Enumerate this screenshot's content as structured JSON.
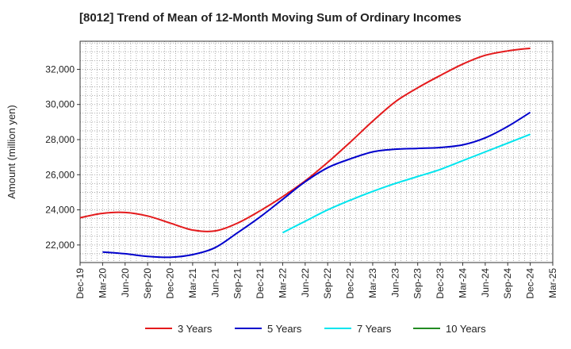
{
  "chart_data": {
    "type": "line",
    "title": "[8012]  Trend of Mean of 12-Month Moving Sum of Ordinary Incomes",
    "xlabel": "",
    "ylabel": "Amount (million yen)",
    "ylim": [
      21000,
      33600
    ],
    "yticks": [
      22000,
      24000,
      26000,
      28000,
      30000,
      32000
    ],
    "ytick_labels": [
      "22,000",
      "24,000",
      "26,000",
      "28,000",
      "30,000",
      "32,000"
    ],
    "categories": [
      "Dec-19",
      "Mar-20",
      "Jun-20",
      "Sep-20",
      "Dec-20",
      "Mar-21",
      "Jun-21",
      "Sep-21",
      "Dec-21",
      "Mar-22",
      "Jun-22",
      "Sep-22",
      "Dec-22",
      "Mar-23",
      "Jun-23",
      "Sep-23",
      "Dec-23",
      "Mar-24",
      "Jun-24",
      "Sep-24",
      "Dec-24",
      "Mar-25"
    ],
    "grid": true,
    "legend_position": "bottom",
    "series": [
      {
        "name": "3 Years",
        "color": "#e41a1c",
        "values": [
          23550,
          23800,
          23850,
          23650,
          23250,
          22850,
          22800,
          23250,
          23950,
          24750,
          25650,
          26700,
          27850,
          29050,
          30150,
          30950,
          31650,
          32300,
          32800,
          33050,
          33200,
          null
        ]
      },
      {
        "name": "5 Years",
        "color": "#0000cc",
        "values": [
          null,
          21600,
          21500,
          21350,
          21300,
          21450,
          21850,
          22700,
          23600,
          24600,
          25600,
          26400,
          26900,
          27300,
          27450,
          27500,
          27550,
          27700,
          28100,
          28750,
          29550,
          null
        ]
      },
      {
        "name": "7 Years",
        "color": "#00e5ee",
        "values": [
          null,
          null,
          null,
          null,
          null,
          null,
          null,
          null,
          null,
          22700,
          23350,
          24000,
          24550,
          25050,
          25500,
          25900,
          26300,
          26800,
          27300,
          27800,
          28300,
          null
        ]
      },
      {
        "name": "10 Years",
        "color": "#228b22",
        "values": [
          null,
          null,
          null,
          null,
          null,
          null,
          null,
          null,
          null,
          null,
          null,
          null,
          null,
          null,
          null,
          null,
          null,
          null,
          null,
          null,
          null,
          null
        ]
      }
    ]
  }
}
